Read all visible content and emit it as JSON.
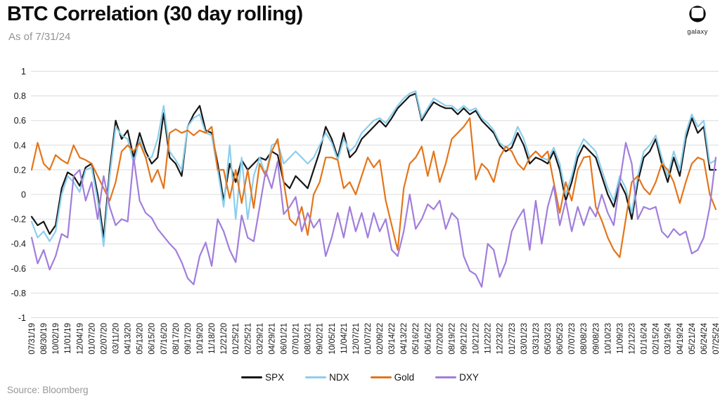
{
  "header": {
    "title": "BTC Correlation (30 day rolling)",
    "subtitle": "As of 7/31/24",
    "logo_text": "galaxy"
  },
  "footer": {
    "source": "Source: Bloomberg"
  },
  "chart_data": {
    "type": "line",
    "title": "BTC Correlation (30 day rolling)",
    "as_of": "7/31/24",
    "grid": true,
    "legend_position": "bottom",
    "ylim": [
      -1,
      1
    ],
    "y_ticks": [
      1,
      0.8,
      0.6,
      0.4,
      0.2,
      0,
      -0.2,
      -0.4,
      -0.6,
      -0.8,
      -1
    ],
    "y_tick_labels": [
      "1",
      "0.8",
      "0.6",
      "0.4",
      "0.2",
      "0",
      "-0.2",
      "-0.4",
      "-0.6",
      "-0.8",
      "-1"
    ],
    "x_tick_labels": [
      "07/31/19",
      "08/30/19",
      "10/02/19",
      "11/01/19",
      "12/04/19",
      "01/07/20",
      "02/07/20",
      "03/11/20",
      "04/13/20",
      "05/13/20",
      "06/15/20",
      "07/16/20",
      "08/17/20",
      "09/17/20",
      "10/19/20",
      "11/18/20",
      "12/21/20",
      "01/25/21",
      "02/25/21",
      "03/29/21",
      "04/29/21",
      "06/01/21",
      "07/01/21",
      "08/03/21",
      "09/02/21",
      "10/05/21",
      "11/04/21",
      "12/07/21",
      "01/07/22",
      "02/09/22",
      "03/14/22",
      "04/13/22",
      "05/16/22",
      "06/16/22",
      "07/20/22",
      "08/19/22",
      "09/21/22",
      "10/21/22",
      "11/22/22",
      "12/23/22",
      "01/27/23",
      "03/01/23",
      "03/31/23",
      "05/03/23",
      "06/05/23",
      "07/07/23",
      "08/08/23",
      "09/08/23",
      "10/10/23",
      "11/09/23",
      "12/12/23",
      "01/16/24",
      "02/15/24",
      "03/19/24",
      "04/19/24",
      "05/21/24",
      "06/24/24",
      "07/25/24"
    ],
    "points_per_tick": 2,
    "series": [
      {
        "name": "SPX",
        "color": "#161616",
        "values": [
          -0.18,
          -0.25,
          -0.22,
          -0.32,
          -0.25,
          0.05,
          0.18,
          0.15,
          0.07,
          0.22,
          0.25,
          0,
          -0.35,
          0.2,
          0.6,
          0.45,
          0.52,
          0.3,
          0.5,
          0.35,
          0.25,
          0.3,
          0.66,
          0.3,
          0.25,
          0.15,
          0.55,
          0.65,
          0.72,
          0.52,
          0.5,
          0.25,
          -0.05,
          0.25,
          0.1,
          0.28,
          0.2,
          0.25,
          0.3,
          0.28,
          0.35,
          0.32,
          0.1,
          0.05,
          0.15,
          0.1,
          0.05,
          0.2,
          0.35,
          0.55,
          0.45,
          0.3,
          0.5,
          0.3,
          0.35,
          0.45,
          0.5,
          0.55,
          0.6,
          0.55,
          0.62,
          0.7,
          0.75,
          0.8,
          0.82,
          0.6,
          0.68,
          0.75,
          0.72,
          0.7,
          0.7,
          0.65,
          0.7,
          0.65,
          0.68,
          0.6,
          0.55,
          0.5,
          0.4,
          0.35,
          0.38,
          0.5,
          0.4,
          0.25,
          0.3,
          0.28,
          0.25,
          0.35,
          0.2,
          -0.05,
          0.1,
          0.3,
          0.4,
          0.35,
          0.3,
          0.15,
          0,
          -0.1,
          0.1,
          0,
          -0.2,
          0.1,
          0.3,
          0.35,
          0.45,
          0.25,
          0.1,
          0.3,
          0.15,
          0.45,
          0.62,
          0.5,
          0.55,
          0.2,
          0.2
        ]
      },
      {
        "name": "NDX",
        "color": "#8CCFEC",
        "values": [
          -0.22,
          -0.35,
          -0.3,
          -0.38,
          -0.3,
          0,
          0.15,
          0.1,
          0.02,
          0.2,
          0.22,
          -0.05,
          -0.42,
          0.15,
          0.55,
          0.48,
          0.45,
          0.25,
          0.45,
          0.3,
          0.3,
          0.45,
          0.72,
          0.35,
          0.28,
          0.2,
          0.55,
          0.62,
          0.65,
          0.5,
          0.48,
          0.2,
          -0.1,
          0.4,
          -0.2,
          0.3,
          -0.2,
          0.15,
          0.3,
          0.15,
          0.4,
          0.42,
          0.25,
          0.3,
          0.35,
          0.3,
          0.25,
          0.3,
          0.4,
          0.5,
          0.42,
          0.28,
          0.45,
          0.35,
          0.4,
          0.5,
          0.55,
          0.6,
          0.62,
          0.58,
          0.65,
          0.72,
          0.78,
          0.82,
          0.84,
          0.62,
          0.7,
          0.78,
          0.75,
          0.72,
          0.72,
          0.68,
          0.72,
          0.68,
          0.7,
          0.62,
          0.58,
          0.52,
          0.42,
          0.38,
          0.42,
          0.55,
          0.45,
          0.3,
          0.35,
          0.3,
          0.28,
          0.38,
          0.25,
          0,
          0.15,
          0.35,
          0.45,
          0.4,
          0.35,
          0.2,
          0.05,
          -0.05,
          0.15,
          0.05,
          -0.15,
          0.15,
          0.35,
          0.4,
          0.48,
          0.3,
          0.15,
          0.35,
          0.2,
          0.5,
          0.65,
          0.55,
          0.6,
          0.25,
          0.28
        ]
      },
      {
        "name": "Gold",
        "color": "#E4751A",
        "values": [
          0.2,
          0.42,
          0.25,
          0.2,
          0.32,
          0.28,
          0.25,
          0.4,
          0.3,
          0.28,
          0.25,
          0.15,
          0.05,
          -0.05,
          0.1,
          0.35,
          0.4,
          0.35,
          0.42,
          0.3,
          0.1,
          0.2,
          0.05,
          0.5,
          0.53,
          0.5,
          0.52,
          0.48,
          0.52,
          0.5,
          0.55,
          0.2,
          0.2,
          -0.03,
          0.2,
          -0.07,
          0.2,
          -0.11,
          0.25,
          0.15,
          0.35,
          0.45,
          0.1,
          -0.2,
          -0.25,
          -0.1,
          -0.33,
          0,
          0.1,
          0.3,
          0.3,
          0.28,
          0.05,
          0.1,
          0,
          0.15,
          0.3,
          0.22,
          0.28,
          -0.05,
          -0.25,
          -0.45,
          0.05,
          0.25,
          0.3,
          0.39,
          0.15,
          0.35,
          0.1,
          0.25,
          0.45,
          0.5,
          0.55,
          0.62,
          0.12,
          0.25,
          0.2,
          0.1,
          0.3,
          0.39,
          0.35,
          0.25,
          0.2,
          0.3,
          0.35,
          0.3,
          0.35,
          0.1,
          -0.15,
          0.1,
          -0.05,
          0.2,
          0.3,
          0.31,
          -0.1,
          -0.21,
          -0.35,
          -0.45,
          -0.51,
          -0.2,
          0.1,
          0.15,
          0.05,
          0,
          0.1,
          0.25,
          0.2,
          0.1,
          -0.07,
          0.1,
          0.25,
          0.3,
          0.28,
          0,
          -0.12
        ]
      },
      {
        "name": "DXY",
        "color": "#A17EDC",
        "values": [
          -0.35,
          -0.56,
          -0.45,
          -0.61,
          -0.5,
          -0.32,
          -0.35,
          0.15,
          0.2,
          -0.05,
          0.1,
          -0.2,
          0.15,
          -0.1,
          -0.25,
          -0.2,
          -0.22,
          0.3,
          -0.05,
          -0.15,
          -0.19,
          -0.28,
          -0.34,
          -0.4,
          -0.45,
          -0.55,
          -0.68,
          -0.73,
          -0.5,
          -0.39,
          -0.58,
          -0.2,
          -0.3,
          -0.45,
          -0.55,
          -0.17,
          -0.35,
          -0.38,
          -0.1,
          0.19,
          0.05,
          0.27,
          -0.16,
          -0.1,
          -0.02,
          -0.3,
          -0.15,
          -0.27,
          -0.2,
          -0.5,
          -0.35,
          -0.15,
          -0.35,
          -0.1,
          -0.3,
          -0.15,
          -0.35,
          -0.15,
          -0.3,
          -0.2,
          -0.45,
          -0.5,
          -0.3,
          0,
          -0.28,
          -0.2,
          -0.08,
          -0.12,
          -0.05,
          -0.28,
          -0.15,
          -0.2,
          -0.5,
          -0.62,
          -0.65,
          -0.75,
          -0.4,
          -0.45,
          -0.67,
          -0.55,
          -0.3,
          -0.2,
          -0.12,
          -0.45,
          -0.05,
          -0.4,
          -0.1,
          0.07,
          -0.25,
          -0.05,
          -0.3,
          -0.1,
          -0.25,
          -0.1,
          -0.18,
          0,
          -0.15,
          -0.25,
          0.1,
          0.42,
          0.25,
          -0.2,
          -0.1,
          -0.12,
          -0.1,
          -0.3,
          -0.35,
          -0.28,
          -0.33,
          -0.3,
          -0.48,
          -0.45,
          -0.35,
          -0.1,
          0.3
        ]
      }
    ]
  }
}
